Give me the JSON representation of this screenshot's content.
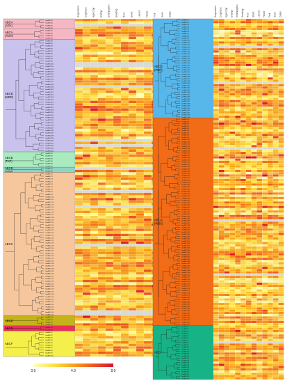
{
  "chart_data": {
    "type": "heatmap",
    "title": "",
    "color_scale": {
      "min": 0.0,
      "max": 8.0,
      "tick_labels": [
        "0.0",
        "4.0",
        "8.0"
      ],
      "colors": [
        "#ffffc0",
        "#fde14a",
        "#f9a21e",
        "#ef5623",
        "#d7132d"
      ],
      "missing_color": "#d9d9d9"
    },
    "columns": [
      "Suspension",
      "Cotyledon",
      "Hypocotyl",
      "Embryo",
      "Embryogenic",
      "Seedling",
      "Root",
      "Shoot",
      "Leaves",
      "Flower",
      "Fruit",
      "Seed",
      "Callus"
    ],
    "panels": [
      {
        "groups": [
          {
            "name": "ABCA",
            "sub": "(ATH)",
            "rows": 4,
            "color": "#f5b7c2"
          },
          {
            "name": "ABCA",
            "sub": "(AOH)",
            "rows": 4,
            "color": "#f5b7c2"
          },
          {
            "name": "ABCB",
            "sub": "(MDR)",
            "rows": 44,
            "color": "#c9c2ec"
          },
          {
            "name": "ABCB",
            "sub": "(TAP)",
            "rows": 6,
            "color": "#a9ebbf"
          },
          {
            "name": "ABCB",
            "sub": "(ATM)",
            "rows": 2,
            "color": "#8fd3c6"
          },
          {
            "name": "ABCC",
            "sub": "",
            "rows": 56,
            "color": "#f6c79d"
          },
          {
            "name": "ABCD",
            "sub": "",
            "rows": 4,
            "color": "#c4b41a"
          },
          {
            "name": "ABCE",
            "sub": "",
            "rows": 2,
            "color": "#e8305a"
          },
          {
            "name": "ABCF",
            "sub": "",
            "rows": 10,
            "color": "#f4ef4a"
          }
        ]
      },
      {
        "groups": [
          {
            "name": "ABCG",
            "sub": "(PDR)",
            "rows": 44,
            "color": "#58b7ea"
          },
          {
            "name": "ABCG",
            "sub": "(WBC)",
            "rows": 92,
            "color": "#f26b16"
          },
          {
            "name": "ABCI",
            "sub": "",
            "rows": 24,
            "color": "#17b286"
          }
        ]
      }
    ],
    "gene_label_prefix": "GmABC"
  }
}
